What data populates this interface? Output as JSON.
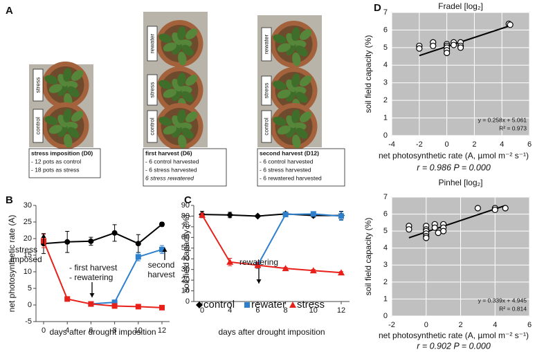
{
  "panel_labels": [
    "A",
    "B",
    "C",
    "D"
  ],
  "photos": [
    {
      "tags": [
        "stress",
        "control"
      ],
      "caption": [
        "stress imposition (D0)",
        "- 12 pots as control",
        "- 18 pots as stress"
      ]
    },
    {
      "tags": [
        "rewater",
        "stress",
        "control"
      ],
      "caption": [
        "first harvest (D6)",
        "- 6 control harvested",
        "- 6 stress harvested",
        "6 stress rewatered"
      ]
    },
    {
      "tags": [
        "rewater",
        "stress",
        "control"
      ],
      "caption": [
        "second harvest (D12)",
        "- 6 control harvested",
        "- 6 stress harvested",
        "- 6 rewatered harvested"
      ]
    }
  ],
  "chart_data": [
    {
      "type": "line",
      "ylabel": "net photosynthetic rate (A)",
      "xlabel": "days after drought imposition",
      "categories": [
        "0",
        "4",
        "6",
        "8",
        "10",
        "12"
      ],
      "ylim": [
        -5,
        30
      ],
      "yticks": [
        -5,
        0,
        5,
        10,
        15,
        20,
        25,
        30
      ],
      "series": [
        {
          "name": "control",
          "color": "#000000",
          "marker": "circle",
          "values": [
            18.5,
            19,
            19.2,
            21.7,
            18.5,
            24.3
          ],
          "errors": [
            3,
            3.2,
            1.2,
            2.5,
            2.7,
            0.6
          ]
        },
        {
          "name": "rewater",
          "color": "#2e7fcc",
          "marker": "square",
          "values": [
            null,
            null,
            0.3,
            0.8,
            14.5,
            16.7
          ],
          "errors": [
            null,
            null,
            0.2,
            0.3,
            1.2,
            1.2
          ]
        },
        {
          "name": "stress",
          "color": "#e8201a",
          "marker": "square",
          "values": [
            19.3,
            1.8,
            0.3,
            -0.3,
            -0.5,
            -0.8
          ],
          "errors": [
            2,
            0.3,
            0.2,
            0.2,
            0.2,
            0.2
          ]
        }
      ],
      "legend": false,
      "annotations": [
        [
          "stress",
          "imposed"
        ],
        [
          "- first harvest",
          "- rewatering"
        ],
        [
          "second",
          "harvest"
        ]
      ]
    },
    {
      "type": "line",
      "ylabel": "soil field capacity (%)",
      "xlabel": "days after drought imposition",
      "categories": [
        "0",
        "4",
        "6",
        "8",
        "10",
        "12"
      ],
      "ylim": [
        0,
        90
      ],
      "yticks": [
        0,
        10,
        20,
        30,
        40,
        50,
        60,
        70,
        80,
        90
      ],
      "series": [
        {
          "name": "control",
          "color": "#000000",
          "marker": "diamond",
          "values": [
            81.5,
            81,
            80,
            82,
            80.5,
            80.5
          ],
          "errors": [
            3,
            2.5,
            1,
            1,
            1.5,
            4
          ]
        },
        {
          "name": "rewater",
          "color": "#2e7fcc",
          "marker": "square",
          "values": [
            null,
            null,
            34,
            81.5,
            82,
            80
          ],
          "errors": [
            null,
            null,
            3,
            1,
            2,
            4
          ]
        },
        {
          "name": "stress",
          "color": "#e8201a",
          "marker": "triangle",
          "values": [
            81,
            37,
            34,
            31,
            29,
            27
          ],
          "errors": [
            1.5,
            3.5,
            2.5,
            1,
            1,
            1
          ]
        }
      ],
      "legend": true,
      "annotations": [
        [
          "rewatering"
        ]
      ]
    },
    {
      "type": "scatter",
      "title": "Fradel [log₂]",
      "xlabel": "net photosynthetic rate (A, µmol m⁻² s⁻¹)",
      "ylabel": "soil field capacity (%)",
      "xlim": [
        -4,
        6
      ],
      "xticks": [
        -4,
        -2,
        0,
        2,
        4,
        6
      ],
      "ylim": [
        0,
        7
      ],
      "yticks": [
        0,
        1,
        2,
        3,
        4,
        5,
        6,
        7
      ],
      "grid": true,
      "x": [
        -2,
        -2,
        -1,
        -1,
        0,
        0,
        0,
        0,
        0,
        0.5,
        0.5,
        1,
        1,
        1,
        4.5,
        4.6
      ],
      "values": [
        5.1,
        4.95,
        5.3,
        5.1,
        5.2,
        5.1,
        5.0,
        4.85,
        4.7,
        5.3,
        5.15,
        5.3,
        5.1,
        5.0,
        6.35,
        6.3
      ],
      "fit": {
        "slope": 0.258,
        "intercept": 5.061,
        "label": "y = 0.258x + 5.061",
        "r2_label": "R² = 0.973"
      },
      "stat": "r = 0.986 P = 0.000"
    },
    {
      "type": "scatter",
      "title": "Pinhel [log₂]",
      "xlabel": "net photosynthetic rate (A, µmol m⁻² s⁻¹)",
      "ylabel": "soil field capacity (%)",
      "xlim": [
        -2,
        6
      ],
      "xticks": [
        -2,
        0,
        2,
        4,
        6
      ],
      "ylim": [
        0,
        7
      ],
      "yticks": [
        0,
        1,
        2,
        3,
        4,
        5,
        6,
        7
      ],
      "grid": true,
      "x": [
        -1,
        -1,
        0,
        0,
        0,
        0,
        0,
        0,
        0.5,
        0.5,
        0.7,
        1,
        1,
        1,
        3,
        4,
        4,
        4.6
      ],
      "values": [
        5.3,
        5.1,
        5.3,
        5.1,
        5.0,
        4.85,
        4.7,
        4.6,
        5.4,
        5.2,
        4.9,
        5.4,
        5.2,
        5.0,
        6.35,
        6.35,
        6.25,
        6.35
      ],
      "fit": {
        "slope": 0.339,
        "intercept": 4.945,
        "label": "y = 0.339x + 4.945",
        "r2_label": "R² = 0.814"
      },
      "stat": "r = 0.902 P = 0.000"
    }
  ]
}
